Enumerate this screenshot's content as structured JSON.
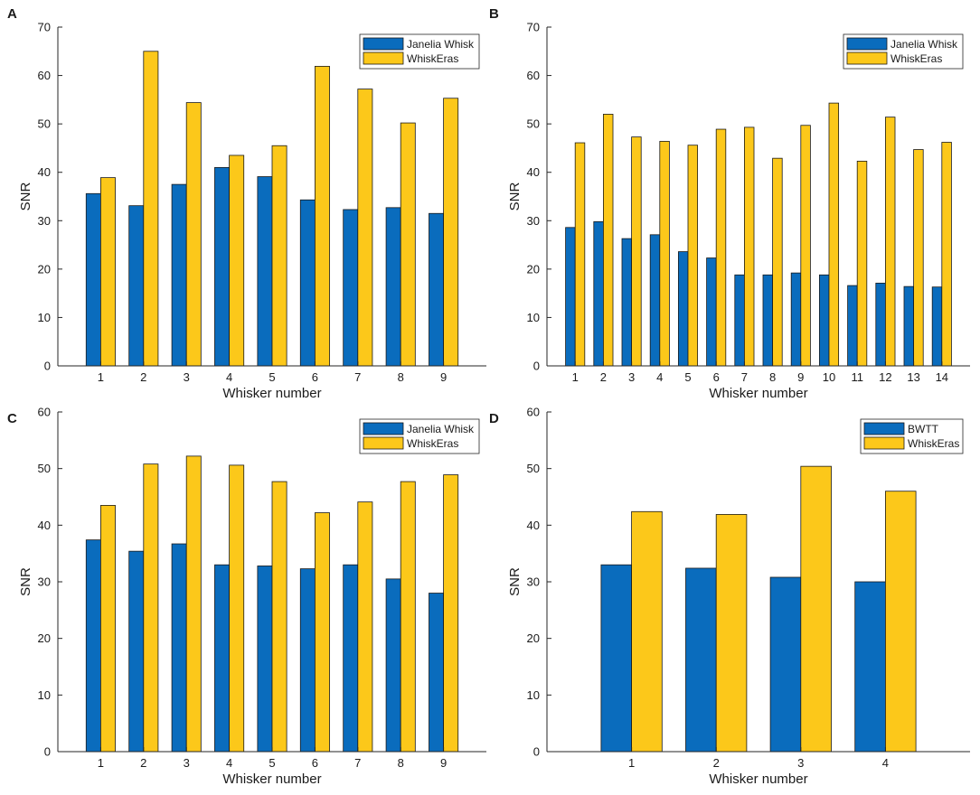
{
  "colors": {
    "blue": "#0a6cbd",
    "yellow": "#fcc81a",
    "axis": "#262626",
    "legend_border": "#262626"
  },
  "chart_data": [
    {
      "panel": "A",
      "type": "bar",
      "categories": [
        "1",
        "2",
        "3",
        "4",
        "5",
        "6",
        "7",
        "8",
        "9"
      ],
      "series": [
        {
          "name": "Janelia Whisk",
          "values": [
            35.6,
            33.1,
            37.5,
            41.0,
            39.1,
            34.3,
            32.3,
            32.7,
            31.5
          ]
        },
        {
          "name": "WhiskEras",
          "values": [
            38.9,
            65.0,
            54.4,
            43.5,
            45.5,
            61.9,
            57.2,
            50.2,
            55.3
          ]
        }
      ],
      "ylim": [
        0,
        70
      ],
      "yticks": [
        0,
        10,
        20,
        30,
        40,
        50,
        60,
        70
      ],
      "xlabel": "Whisker number",
      "ylabel": "SNR",
      "legend_position": "top-right"
    },
    {
      "panel": "B",
      "type": "bar",
      "categories": [
        "1",
        "2",
        "3",
        "4",
        "5",
        "6",
        "7",
        "8",
        "9",
        "10",
        "11",
        "12",
        "13",
        "14"
      ],
      "series": [
        {
          "name": "Janelia Whisk",
          "values": [
            28.6,
            29.8,
            26.3,
            27.1,
            23.6,
            22.3,
            18.8,
            18.8,
            19.2,
            18.8,
            16.6,
            17.1,
            16.4,
            16.3
          ]
        },
        {
          "name": "WhiskEras",
          "values": [
            46.1,
            52.0,
            47.3,
            46.4,
            45.6,
            48.9,
            49.3,
            42.9,
            49.7,
            54.3,
            42.3,
            51.4,
            44.7,
            46.2
          ]
        }
      ],
      "ylim": [
        0,
        70
      ],
      "yticks": [
        0,
        10,
        20,
        30,
        40,
        50,
        60,
        70
      ],
      "xlabel": "Whisker number",
      "ylabel": "SNR",
      "legend_position": "top-right"
    },
    {
      "panel": "C",
      "type": "bar",
      "categories": [
        "1",
        "2",
        "3",
        "4",
        "5",
        "6",
        "7",
        "8",
        "9"
      ],
      "series": [
        {
          "name": "Janelia Whisk",
          "values": [
            37.4,
            35.4,
            36.7,
            33.0,
            32.8,
            32.3,
            33.0,
            30.5,
            28.0
          ]
        },
        {
          "name": "WhiskEras",
          "values": [
            43.5,
            50.8,
            52.2,
            50.6,
            47.7,
            42.2,
            44.1,
            47.7,
            48.9
          ]
        }
      ],
      "ylim": [
        0,
        60
      ],
      "yticks": [
        0,
        10,
        20,
        30,
        40,
        50,
        60
      ],
      "xlabel": "Whisker number",
      "ylabel": "SNR",
      "legend_position": "top-right"
    },
    {
      "panel": "D",
      "type": "bar",
      "categories": [
        "1",
        "2",
        "3",
        "4"
      ],
      "series": [
        {
          "name": "BWTT",
          "values": [
            33.0,
            32.4,
            30.8,
            30.0
          ]
        },
        {
          "name": "WhiskEras",
          "values": [
            42.4,
            41.9,
            50.4,
            46.0
          ]
        }
      ],
      "ylim": [
        0,
        60
      ],
      "yticks": [
        0,
        10,
        20,
        30,
        40,
        50,
        60
      ],
      "xlabel": "Whisker number",
      "ylabel": "SNR",
      "legend_position": "top-right"
    }
  ]
}
